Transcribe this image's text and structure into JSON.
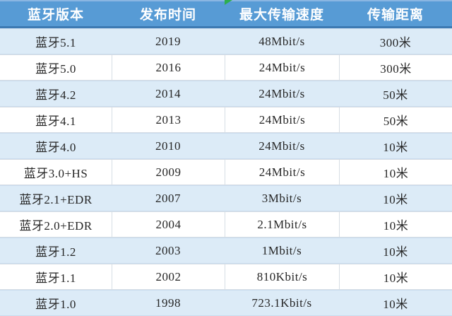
{
  "chart_data": {
    "type": "table",
    "title": "",
    "columns": [
      "蓝牙版本",
      "发布时间",
      "最大传输速度",
      "传输距离"
    ],
    "rows": [
      [
        "蓝牙5.1",
        "2019",
        "48Mbit/s",
        "300米"
      ],
      [
        "蓝牙5.0",
        "2016",
        "24Mbit/s",
        "300米"
      ],
      [
        "蓝牙4.2",
        "2014",
        "24Mbit/s",
        "50米"
      ],
      [
        "蓝牙4.1",
        "2013",
        "24Mbit/s",
        "50米"
      ],
      [
        "蓝牙4.0",
        "2010",
        "24Mbit/s",
        "10米"
      ],
      [
        "蓝牙3.0+HS",
        "2009",
        "24Mbit/s",
        "10米"
      ],
      [
        "蓝牙2.1+EDR",
        "2007",
        "3Mbit/s",
        "10米"
      ],
      [
        "蓝牙2.0+EDR",
        "2004",
        "2.1Mbit/s",
        "10米"
      ],
      [
        "蓝牙1.2",
        "2003",
        "1Mbit/s",
        "10米"
      ],
      [
        "蓝牙1.1",
        "2002",
        "810Kbit/s",
        "10米"
      ],
      [
        "蓝牙1.0",
        "1998",
        "723.1Kbit/s",
        "10米"
      ]
    ],
    "layout": {
      "grid": "alternating-row-stripes",
      "stripe_pattern": "odd-rows-light-blue"
    }
  },
  "icons": {
    "corner_marker": "green-triangle"
  },
  "colors": {
    "header_bg": "#579bd5",
    "header_border_bottom": "#3d7ab2",
    "header_text": "#ffffff",
    "row_alt_bg": "#dcebf7",
    "row_white_bg": "#ffffff",
    "cell_border": "#d6dde4",
    "body_text": "#262626",
    "marker_green": "#2eae4e"
  }
}
